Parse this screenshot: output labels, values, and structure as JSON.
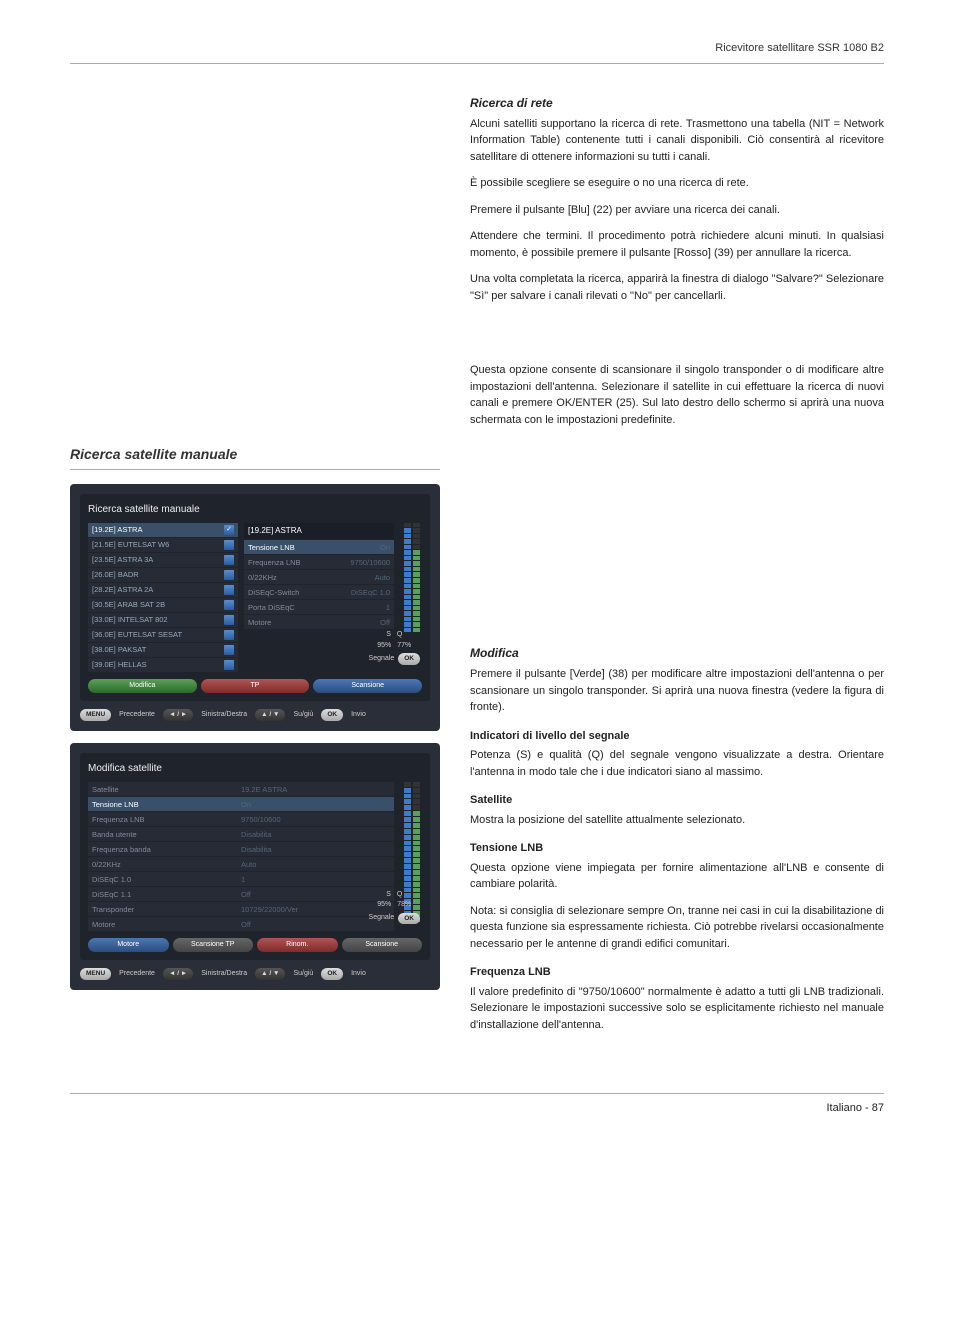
{
  "header": {
    "product": "Ricevitore satellitare SSR 1080 B2"
  },
  "net_search": {
    "title": "Ricerca di rete",
    "p1": "Alcuni satelliti supportano la ricerca di rete. Trasmettono una tabella (NIT = Network Information Table) contenente tutti i canali disponibili. Ciò consentirà al ricevitore satellitare di ottenere informazioni su tutti i canali.",
    "p2": "È possibile scegliere se eseguire o no una ricerca di rete.",
    "p3": "Premere il pulsante [Blu] (22) per avviare una ricerca dei canali.",
    "p4": "Attendere che termini. Il procedimento potrà richiedere alcuni minuti. In qualsiasi momento, è possibile premere il pulsante [Rosso] (39) per annullare la ricerca.",
    "p5": "Una volta completata la ricerca, apparirà la finestra di dialogo \"Salvare?\"  Selezionare \"Sì\" per salvare i canali rilevati o \"No\" per cancellarli."
  },
  "manual_search": {
    "title": "Ricerca satellite manuale",
    "intro": "Questa opzione consente di scansionare il singolo transponder o di modificare altre impostazioni dell'antenna. Selezionare il satellite in cui effettuare la ricerca di nuovi canali e premere OK/ENTER (25). Sul lato destro dello schermo si aprirà una nuova schermata con le impostazioni predefinite."
  },
  "modifica": {
    "title": "Modifica",
    "p1": "Premere il pulsante [Verde] (38) per modificare altre impostazioni dell'antenna o per scansionare un singolo transponder. Si aprirà una nuova finestra (vedere la figura di fronte).",
    "ind_title": "Indicatori di livello del segnale",
    "ind_text": "Potenza (S) e qualità (Q) del segnale vengono visualizzate a destra. Orientare l'antenna in modo tale che i due indicatori siano al massimo.",
    "sat_title": "Satellite",
    "sat_text": "Mostra la posizione del satellite attualmente selezionato.",
    "lnb_title": "Tensione LNB",
    "lnb_text": "Questa opzione viene impiegata per fornire alimentazione all'LNB e consente di cambiare polarità.",
    "lnb_note": "Nota: si consiglia di selezionare sempre On, tranne nei casi in cui la disabilitazione di questa funzione sia espressamente richiesta. Ciò potrebbe rivelarsi occasionalmente necessario per le antenne di grandi edifici comunitari.",
    "freq_title": "Frequenza LNB",
    "freq_text": "Il valore predefinito di \"9750/10600\" normalmente è adatto a tutti gli LNB tradizionali. Selezionare le impostazioni successive solo se esplicitamente richiesto nel manuale d'installazione dell'antenna."
  },
  "footer": {
    "lang": "Italiano",
    "sep": " - ",
    "page": "87"
  },
  "ui1": {
    "title": "Ricerca satellite manuale",
    "sats": [
      {
        "label": "[19.2E] ASTRA",
        "sel": true,
        "chk": true
      },
      {
        "label": "[21.5E] EUTELSAT W6",
        "sel": false,
        "chk": false
      },
      {
        "label": "[23.5E] ASTRA 3A",
        "sel": false,
        "chk": false
      },
      {
        "label": "[26.0E] BADR",
        "sel": false,
        "chk": false
      },
      {
        "label": "[28.2E] ASTRA 2A",
        "sel": false,
        "chk": false
      },
      {
        "label": "[30.5E] ARAB SAT 2B",
        "sel": false,
        "chk": false
      },
      {
        "label": "[33.0E] INTELSAT 802",
        "sel": false,
        "chk": false
      },
      {
        "label": "[36.0E] EUTELSAT SESAT",
        "sel": false,
        "chk": false
      },
      {
        "label": "[38.0E] PAKSAT",
        "sel": false,
        "chk": false
      },
      {
        "label": "[39.0E] HELLAS",
        "sel": false,
        "chk": false
      }
    ],
    "btn_modifica": "Modifica",
    "btn_tp": "TP",
    "btn_scansione": "Scansione",
    "panel_header": "[19.2E] ASTRA",
    "props": [
      {
        "k": "Tensione LNB",
        "v": "On",
        "sel": true
      },
      {
        "k": "Frequenza LNB",
        "v": "9750/10600"
      },
      {
        "k": "0/22KHz",
        "v": "Auto"
      },
      {
        "k": "DiSEqC-Switch",
        "v": "DiSEqC 1.0"
      },
      {
        "k": "Porta DiSEqC",
        "v": "1"
      },
      {
        "k": "Motore",
        "v": "Off"
      }
    ],
    "signal_S": "S",
    "signal_Q": "Q",
    "signal_S_val": "95%",
    "signal_Q_val": "77%",
    "segnale": "Segnale",
    "ok": "OK",
    "nav": {
      "menu": "MENU",
      "prec": "Precedente",
      "arrows": "◄ / ►",
      "sd": "Sinistra/Destra",
      "ud": "▲ / ▼",
      "su": "Su/giù",
      "okbtn": "OK",
      "invio": "Invio"
    }
  },
  "ui2": {
    "title": "Modifica satellite",
    "props": [
      {
        "k": "Satellite",
        "v": "19.2E ASTRA"
      },
      {
        "k": "Tensione LNB",
        "v": "On",
        "sel": true
      },
      {
        "k": "Frequenza LNB",
        "v": "9750/10600"
      },
      {
        "k": "Banda utente",
        "v": "Disabilita"
      },
      {
        "k": "Frequenza banda",
        "v": "Disabilita"
      },
      {
        "k": "0/22KHz",
        "v": "Auto"
      },
      {
        "k": "DiSEqC 1.0",
        "v": "1"
      },
      {
        "k": "DiSEqC 1.1",
        "v": "Off"
      },
      {
        "k": "Transponder",
        "v": "10729/22000/Ver"
      },
      {
        "k": "Motore",
        "v": "Off"
      }
    ],
    "btn_motore": "Motore",
    "btn_scansione_tp": "Scansione TP",
    "btn_rinom": "Rinom.",
    "btn_scansione": "Scansione",
    "signal_S": "S",
    "signal_Q": "Q",
    "signal_S_val": "95%",
    "signal_Q_val": "78%",
    "segnale": "Segnale",
    "ok": "OK",
    "nav": {
      "menu": "MENU",
      "prec": "Precedente",
      "arrows": "◄ / ►",
      "sd": "Sinistra/Destra",
      "ud": "▲ / ▼",
      "su": "Su/giù",
      "okbtn": "OK",
      "invio": "Invio"
    }
  },
  "colors": {
    "page_bg": "#ffffff",
    "text": "#222222",
    "rule": "#aaaaaa",
    "ui_bg": "#2a2e38",
    "ui_inner": "#1f232b",
    "ui_row": "#262b35",
    "ui_row_sel": "#3a5068",
    "ui_text": "#cccccc",
    "btn_blue1": "#4a77b5",
    "btn_blue2": "#2a4d7f",
    "btn_green1": "#5aa05a",
    "btn_green2": "#2a6a2a",
    "btn_red1": "#b05555",
    "btn_red2": "#802a2a",
    "bar_blue": "#3a7dd0",
    "bar_green": "#5aa05a"
  }
}
